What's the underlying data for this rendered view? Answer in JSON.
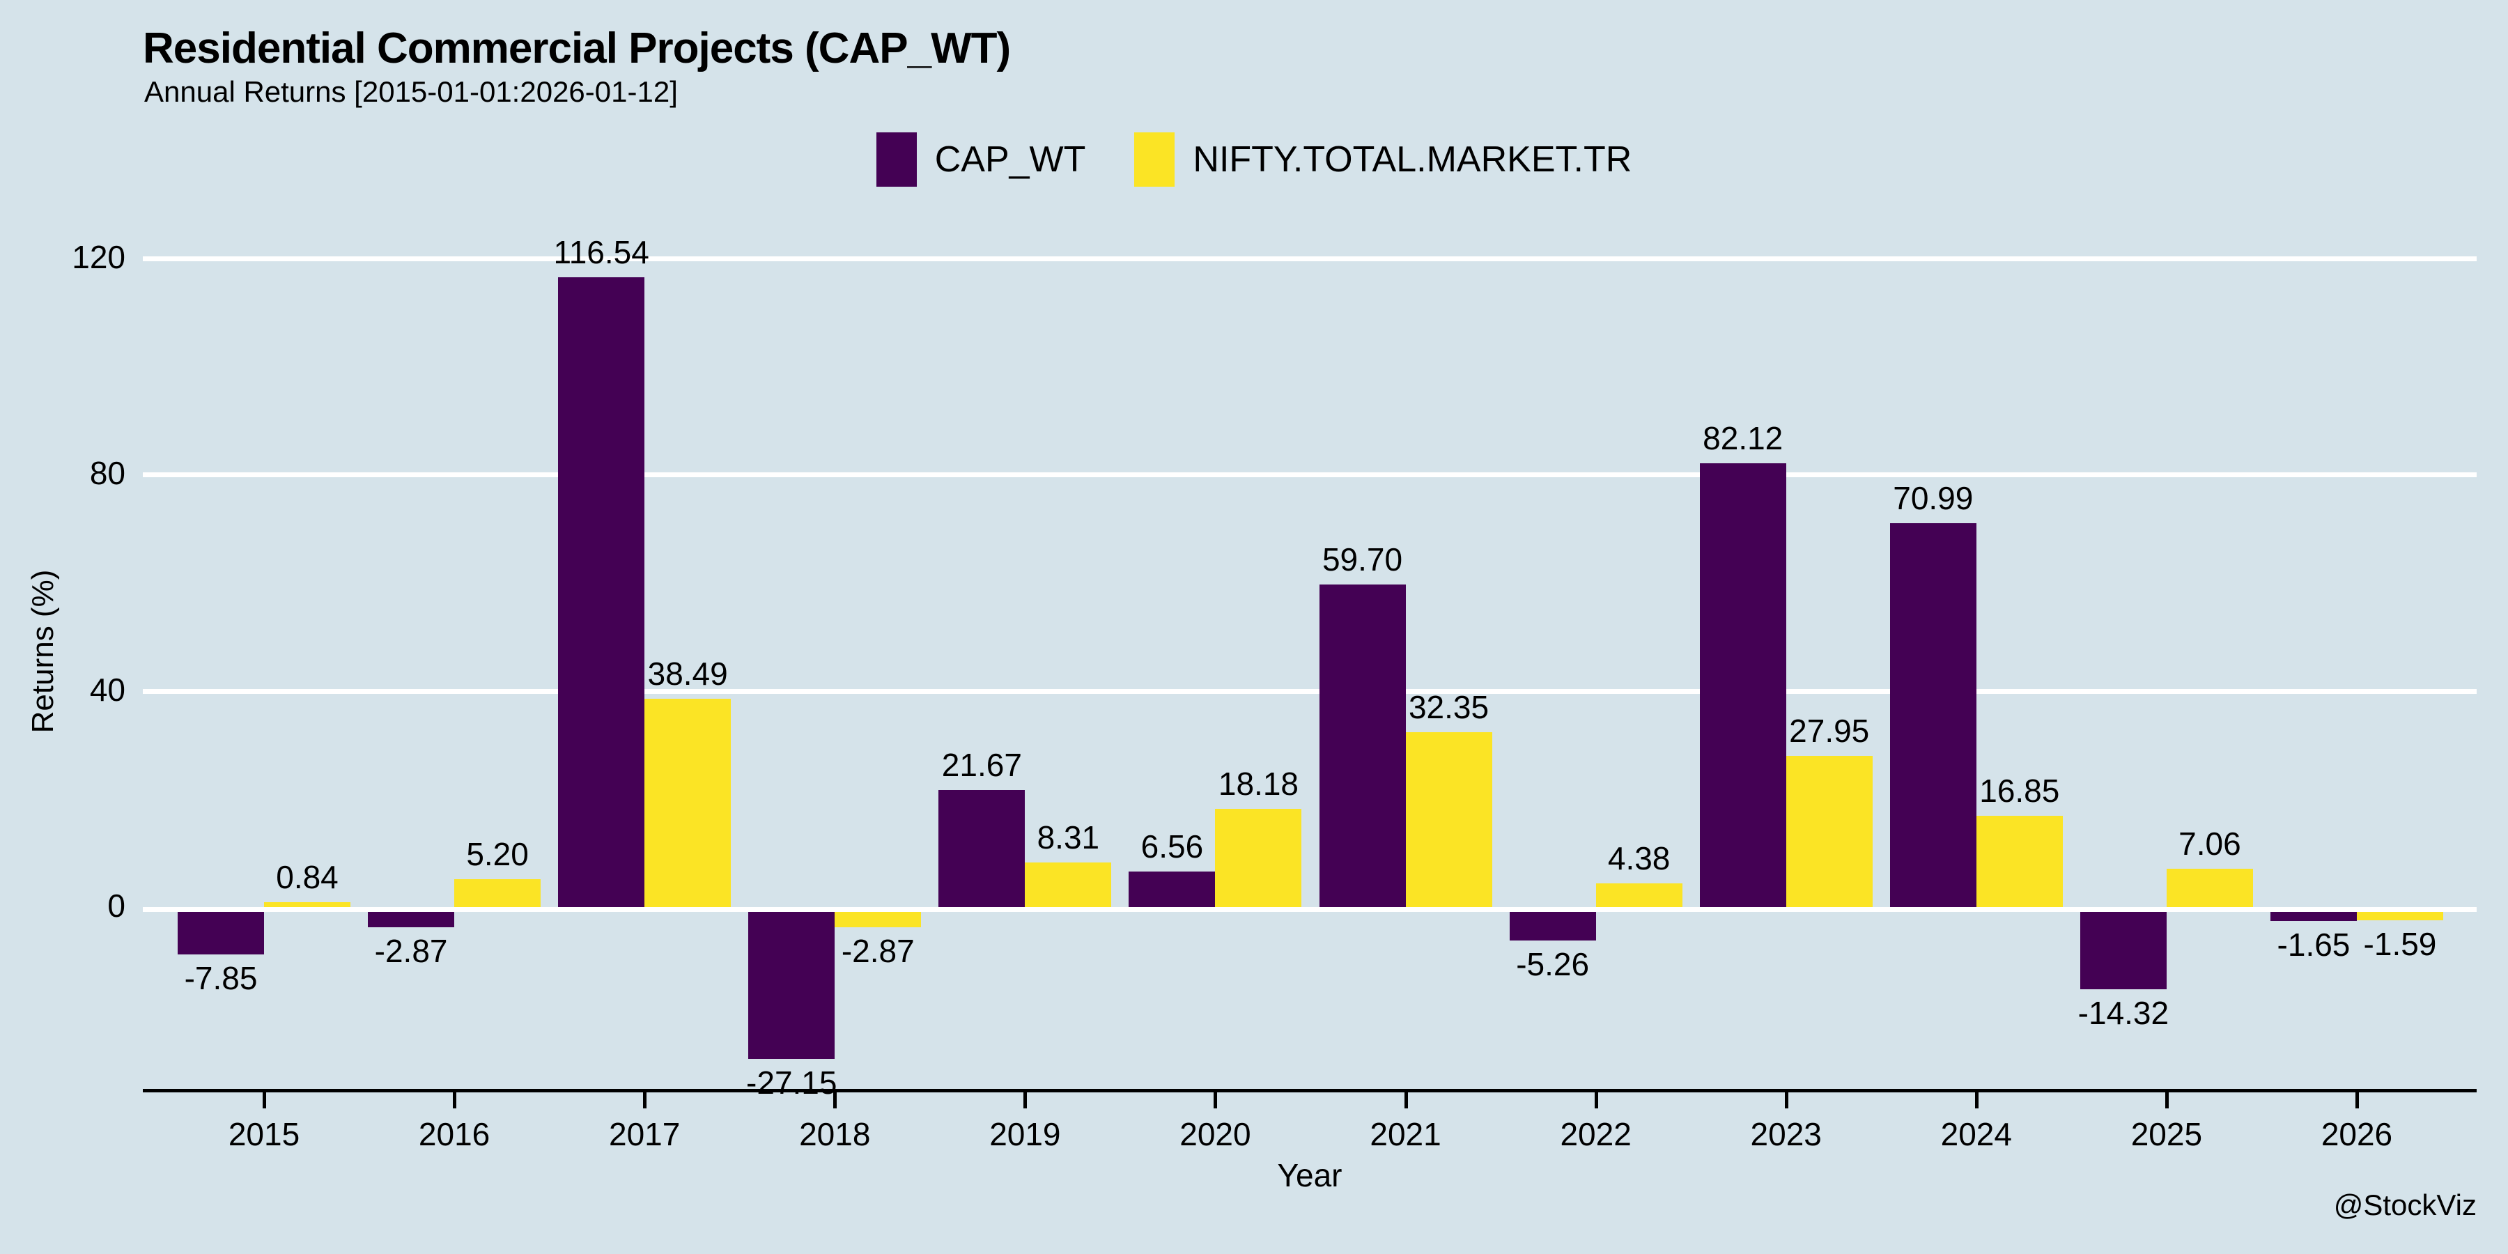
{
  "watermark": "@StockViz",
  "chart_data": {
    "type": "bar",
    "title": "Residential Commercial Projects (CAP_WT)",
    "subtitle": "Annual Returns [2015-01-01:2026-01-12]",
    "categories": [
      "2015",
      "2016",
      "2017",
      "2018",
      "2019",
      "2020",
      "2021",
      "2022",
      "2023",
      "2024",
      "2025",
      "2026"
    ],
    "series": [
      {
        "name": "CAP_WT",
        "color": "#440154",
        "values": [
          -7.85,
          -2.87,
          116.54,
          -27.15,
          21.67,
          6.56,
          59.7,
          -5.26,
          82.12,
          70.99,
          -14.32,
          -1.65
        ]
      },
      {
        "name": "NIFTY.TOTAL.MARKET.TR",
        "color": "#fbe425",
        "values": [
          0.84,
          5.2,
          38.49,
          -2.87,
          8.31,
          18.18,
          32.35,
          4.38,
          27.95,
          16.85,
          7.06,
          -1.59
        ]
      }
    ],
    "xlabel": "Year",
    "ylabel": "Returns (%)",
    "yticks": [
      0,
      40,
      80,
      120
    ],
    "ylim": [
      -34,
      123
    ],
    "grid": true,
    "gridline_color": "#ffffff",
    "background": "#d5e3ea",
    "legend_position": "top-center",
    "value_labels": true,
    "value_label_format": "2dp"
  }
}
